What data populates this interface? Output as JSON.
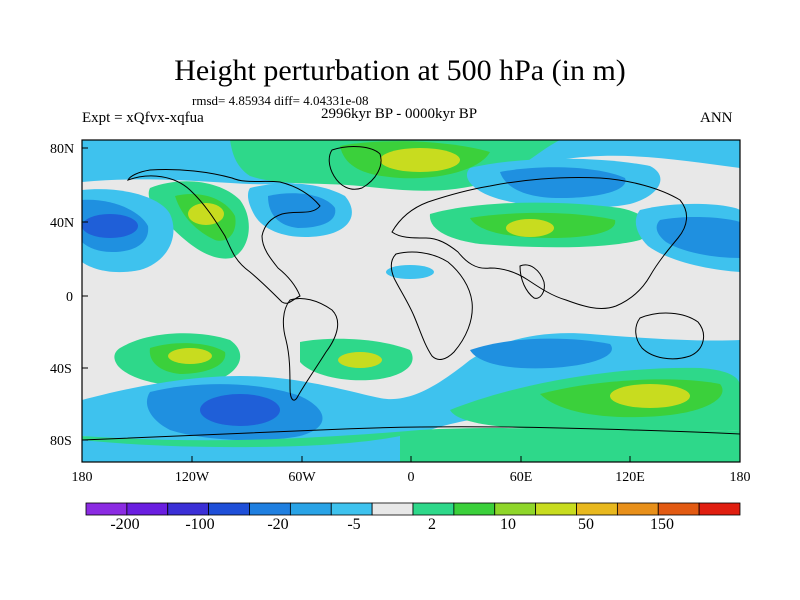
{
  "title": "Height perturbation at 500 hPa (in m)",
  "stats": "rmsd= 4.85934 diff= 4.04331e-08",
  "expt": "Expt = xQfvx-xqfua",
  "period": "2996kyr BP - 0000kyr BP",
  "season": "ANN",
  "lat_ticks": [
    "80N",
    "40N",
    "0",
    "40S",
    "80S"
  ],
  "lon_ticks": [
    "180",
    "120W",
    "60W",
    "0",
    "60E",
    "120E",
    "180"
  ],
  "colorbar": {
    "colors": [
      "#8b2be2",
      "#6a1ee0",
      "#3b2fd6",
      "#1f4fd8",
      "#1f7fe0",
      "#29a3e6",
      "#3ec2ee",
      "#e8e8e8",
      "#2ed88a",
      "#3bd03b",
      "#8fd62a",
      "#c8dc1f",
      "#e8b81e",
      "#e8901a",
      "#e25a12",
      "#e01e10"
    ],
    "labels": [
      "-200",
      "-100",
      "-20",
      "-5",
      "2",
      "10",
      "50",
      "150"
    ]
  },
  "map_colors": {
    "background": "#e8e8e8",
    "light_blue": "#3ec2ee",
    "mid_blue": "#1f90e0",
    "dark_blue": "#1f5fd8",
    "teal": "#2ed88a",
    "green": "#3bd03b",
    "yellow_green": "#c8dc1f",
    "coast": "#000000"
  }
}
